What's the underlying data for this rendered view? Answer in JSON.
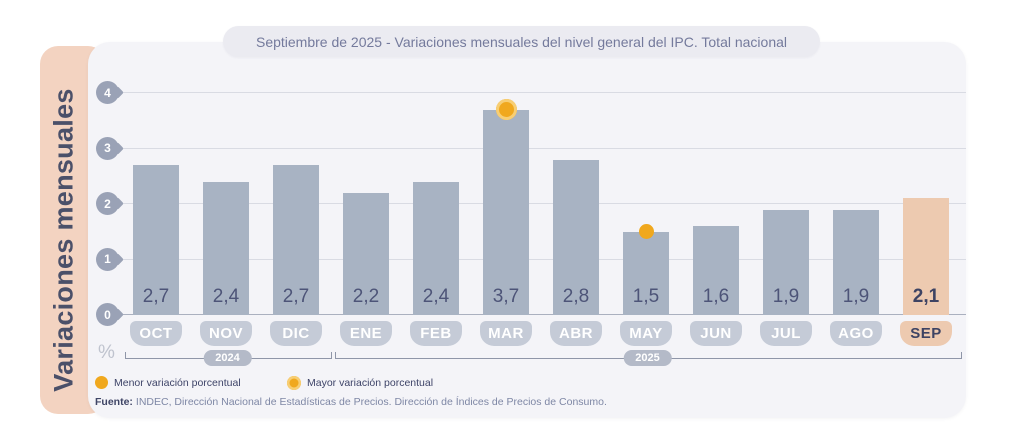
{
  "title": "Septiembre de 2025 - Variaciones mensuales del nivel general del IPC. Total nacional",
  "sidebar_label": "Variaciones mensuales",
  "chart_data": {
    "type": "bar",
    "title": "Septiembre de 2025 - Variaciones mensuales del nivel general del IPC. Total nacional",
    "ylabel": "Variaciones mensuales",
    "unit": "%",
    "categories": [
      "OCT",
      "NOV",
      "DIC",
      "ENE",
      "FEB",
      "MAR",
      "ABR",
      "MAY",
      "JUN",
      "JUL",
      "AGO",
      "SEP"
    ],
    "values": [
      2.7,
      2.4,
      2.7,
      2.2,
      2.4,
      3.7,
      2.8,
      1.5,
      1.6,
      1.9,
      1.9,
      2.1
    ],
    "value_labels": [
      "2,7",
      "2,4",
      "2,7",
      "2,2",
      "2,4",
      "3,7",
      "2,8",
      "1,5",
      "1,6",
      "1,9",
      "1,9",
      "2,1"
    ],
    "yticks": [
      4,
      3,
      2,
      1,
      0
    ],
    "ylim": [
      0,
      4
    ],
    "grid": true,
    "year_groups": [
      {
        "label": "2024",
        "from": "OCT",
        "to": "DIC"
      },
      {
        "label": "2025",
        "from": "ENE",
        "to": "SEP"
      }
    ],
    "highlight_category": "SEP",
    "markers": {
      "min": {
        "month": "MAY",
        "value": 1.5,
        "style": "solid-dot"
      },
      "max": {
        "month": "MAR",
        "value": 3.7,
        "style": "ring-dot"
      }
    }
  },
  "legend": {
    "items": [
      {
        "label": "Menor variación porcentual",
        "marker": "solid-dot"
      },
      {
        "label": "Mayor variación porcentual",
        "marker": "ring-dot"
      }
    ]
  },
  "source": {
    "prefix": "Fuente:",
    "text": "INDEC, Dirección Nacional de Estadísticas de Precios. Dirección de Índices de Precios de Consumo."
  },
  "colors": {
    "bar": "#a8b3c3",
    "highlight_bar": "#edcab0",
    "accent_orange": "#f0a81e",
    "accent_orange_ring": "#f7ce74",
    "card_background": "#f4f4f8",
    "sidebar_background": "#f3d3c1",
    "month_badge": "#c5cbd7",
    "value_text": "#4d5478"
  }
}
